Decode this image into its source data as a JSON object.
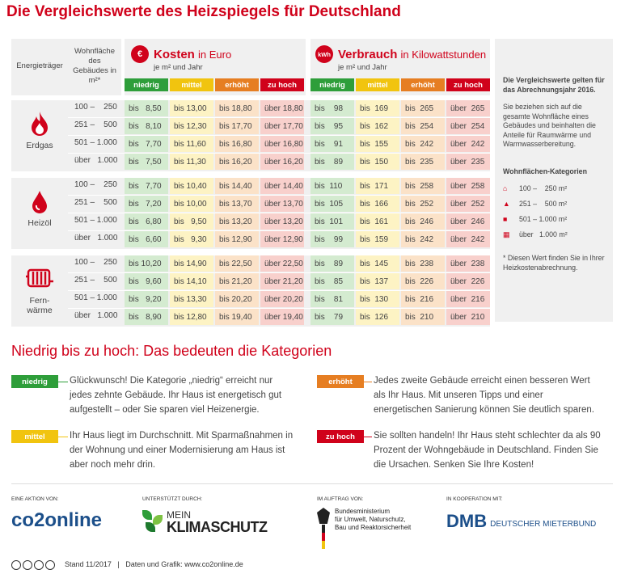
{
  "title": "Die Vergleichswerte des Heizspiegels für Deutschland",
  "header": {
    "energietraeger": "Energieträger",
    "wohnflaeche": [
      "Wohnfläche",
      "des",
      "Gebäudes in",
      "m²*"
    ],
    "kosten_icon": "€",
    "kosten_title": "Kosten",
    "kosten_unit": "in Euro",
    "kosten_sub": "je m² und Jahr",
    "verbrauch_icon": "kWh",
    "verbrauch_title": "Verbrauch",
    "verbrauch_unit": "in Kilowattstunden",
    "verbrauch_sub": "je m² und Jahr",
    "categories": [
      "niedrig",
      "mittel",
      "erhöht",
      "zu hoch"
    ]
  },
  "colors": {
    "niedrig": "#2e9e3a",
    "mittel": "#f1c40f",
    "erhoeht": "#e67e22",
    "zuhoch": "#d0021b",
    "accent": "#d0021b"
  },
  "groups": [
    {
      "label": "Erdgas",
      "icon": "flame-icon",
      "rows": [
        {
          "area": "100 –    250",
          "kosten": [
            "bis   8,50",
            "bis 13,00",
            "bis 18,80",
            "über 18,80"
          ],
          "verbrauch": [
            "bis    98",
            "bis  169",
            "bis  265",
            "über  265"
          ]
        },
        {
          "area": "251 –    500",
          "kosten": [
            "bis   8,10",
            "bis 12,30",
            "bis 17,70",
            "über 17,70"
          ],
          "verbrauch": [
            "bis    95",
            "bis  162",
            "bis  254",
            "über  254"
          ]
        },
        {
          "area": "501 – 1.000",
          "kosten": [
            "bis   7,70",
            "bis 11,60",
            "bis 16,80",
            "über 16,80"
          ],
          "verbrauch": [
            "bis    91",
            "bis  155",
            "bis  242",
            "über  242"
          ]
        },
        {
          "area": "über   1.000",
          "kosten": [
            "bis   7,50",
            "bis 11,30",
            "bis 16,20",
            "über 16,20"
          ],
          "verbrauch": [
            "bis    89",
            "bis  150",
            "bis  235",
            "über  235"
          ]
        }
      ]
    },
    {
      "label": "Heizöl",
      "icon": "oil-drop-icon",
      "rows": [
        {
          "area": "100 –    250",
          "kosten": [
            "bis   7,70",
            "bis 10,40",
            "bis 14,40",
            "über 14,40"
          ],
          "verbrauch": [
            "bis  110",
            "bis  171",
            "bis  258",
            "über  258"
          ]
        },
        {
          "area": "251 –    500",
          "kosten": [
            "bis   7,20",
            "bis 10,00",
            "bis 13,70",
            "über 13,70"
          ],
          "verbrauch": [
            "bis  105",
            "bis  166",
            "bis  252",
            "über  252"
          ]
        },
        {
          "area": "501 – 1.000",
          "kosten": [
            "bis   6,80",
            "bis   9,50",
            "bis 13,20",
            "über 13,20"
          ],
          "verbrauch": [
            "bis  101",
            "bis  161",
            "bis  246",
            "über  246"
          ]
        },
        {
          "area": "über   1.000",
          "kosten": [
            "bis   6,60",
            "bis   9,30",
            "bis 12,90",
            "über 12,90"
          ],
          "verbrauch": [
            "bis    99",
            "bis  159",
            "bis  242",
            "über  242"
          ]
        }
      ]
    },
    {
      "label": "Fern-\nwärme",
      "icon": "radiator-icon",
      "rows": [
        {
          "area": "100 –    250",
          "kosten": [
            "bis 10,20",
            "bis 14,90",
            "bis 22,50",
            "über 22,50"
          ],
          "verbrauch": [
            "bis    89",
            "bis  145",
            "bis  238",
            "über  238"
          ]
        },
        {
          "area": "251 –    500",
          "kosten": [
            "bis   9,60",
            "bis 14,10",
            "bis 21,20",
            "über 21,20"
          ],
          "verbrauch": [
            "bis    85",
            "bis  137",
            "bis  226",
            "über  226"
          ]
        },
        {
          "area": "501 – 1.000",
          "kosten": [
            "bis   9,20",
            "bis 13,30",
            "bis 20,20",
            "über 20,20"
          ],
          "verbrauch": [
            "bis    81",
            "bis  130",
            "bis  216",
            "über  216"
          ]
        },
        {
          "area": "über   1.000",
          "kosten": [
            "bis   8,90",
            "bis 12,80",
            "bis 19,40",
            "über 19,40"
          ],
          "verbrauch": [
            "bis    79",
            "bis  126",
            "bis  210",
            "über  210"
          ]
        }
      ]
    }
  ],
  "side": {
    "bold": "Die Vergleichswerte gelten für das Abrechnungsjahr 2016.",
    "text": "Sie beziehen sich auf die gesamte Wohnfläche eines Gebäudes und beinhalten die Anteile für Raumwärme und Warmwasserbereitung.",
    "cat_title": "Wohnflächen-Kategorien",
    "cats": [
      "100 –    250 m²",
      "251 –    500 m²",
      "501 – 1.000 m²",
      "über   1.000 m²"
    ],
    "note": "* Diesen Wert finden Sie in Ihrer Heizkostenabrechnung."
  },
  "section_title": "Niedrig bis zu hoch: Das bedeuten die Kategorien",
  "explain": {
    "niedrig": "Glückwunsch! Die Kategorie „niedrig“ erreicht nur jedes zehnte Gebäude. Ihr Haus ist energetisch gut aufgestellt – oder Sie sparen viel Heizenergie.",
    "mittel": "Ihr Haus liegt im Durchschnitt. Mit Sparmaßnahmen in der Wohnung und einer Modernisierung am Haus ist aber noch mehr drin.",
    "erhoeht": "Jedes zweite Gebäude erreicht einen besseren Wert als Ihr Haus. Mit unseren Tipps und einer energetischen Sanierung können Sie deutlich sparen.",
    "zuhoch": "Sie sollten handeln! Ihr Haus steht schlechter da als 90 Prozent der Wohngebäude in Deutschland. Finden Sie die Ursachen. Senken Sie Ihre Kosten!"
  },
  "footer": {
    "aktion_label": "Eine Aktion von:",
    "aktion": "co2online",
    "unterstuetzt_label": "Unterstützt durch:",
    "mein": "MEIN",
    "klimaschutz": "KLIMASCHUTZ",
    "auftrag_label": "Im Auftrag von:",
    "bmub": [
      "Bundesministerium",
      "für Umwelt, Naturschutz,",
      "Bau und Reaktorsicherheit"
    ],
    "kooperation_label": "In Kooperation mit:",
    "dmb": "DMB",
    "dmb_text": "DEUTSCHER MIETERBUND",
    "stand": "Stand 11/2017   |   Daten und Grafik: www.co2online.de"
  }
}
